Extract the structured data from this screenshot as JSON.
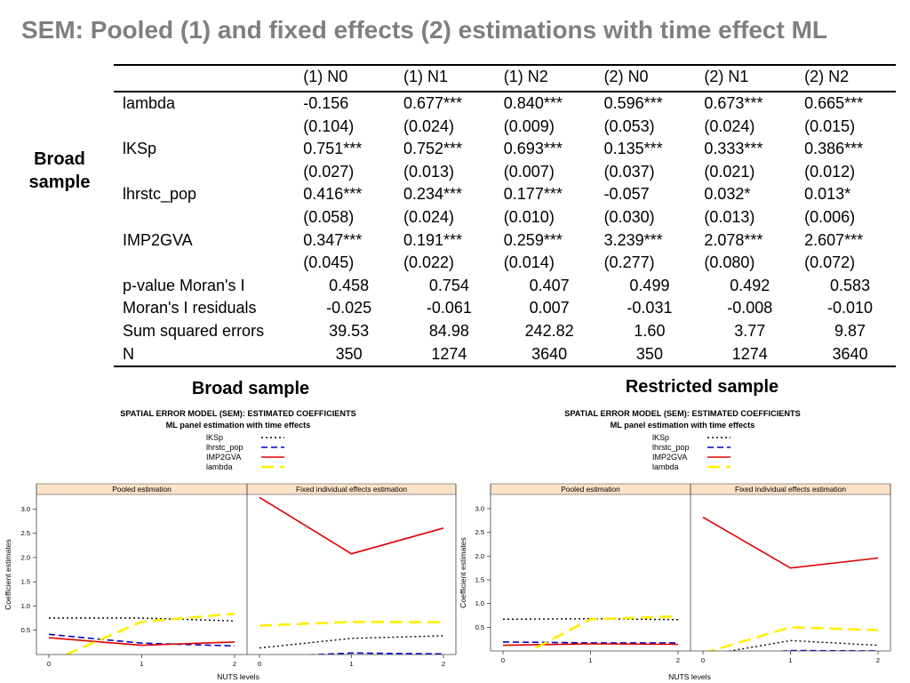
{
  "slide": {
    "title": "SEM: Pooled (1) and fixed effects (2) estimations with time effect ML",
    "side_label": "Broad sample"
  },
  "table": {
    "columns": [
      "(1) N0",
      "(1) N1",
      "(1) N2",
      "(2) N0",
      "(2) N1",
      "(2) N2"
    ],
    "coef_rows": [
      {
        "label": "lambda",
        "values": [
          "-0.156",
          "0.677***",
          "0.840***",
          "0.596***",
          "0.673***",
          "0.665***"
        ],
        "se": [
          "(0.104)",
          "(0.024)",
          "(0.009)",
          "(0.053)",
          "(0.024)",
          "(0.015)"
        ]
      },
      {
        "label": "lKSp",
        "values": [
          "0.751***",
          "0.752***",
          "0.693***",
          "0.135***",
          "0.333***",
          "0.386***"
        ],
        "se": [
          "(0.027)",
          "(0.013)",
          "(0.007)",
          "(0.037)",
          "(0.021)",
          "(0.012)"
        ]
      },
      {
        "label": "lhrstc_pop",
        "values": [
          "0.416***",
          "0.234***",
          "0.177***",
          "-0.057",
          "0.032*",
          "0.013*"
        ],
        "se": [
          "(0.058)",
          "(0.024)",
          "(0.010)",
          "(0.030)",
          "(0.013)",
          "(0.006)"
        ]
      },
      {
        "label": "IMP2GVA",
        "values": [
          "0.347***",
          "0.191***",
          "0.259***",
          "3.239***",
          "2.078***",
          "2.607***"
        ],
        "se": [
          "(0.045)",
          "(0.022)",
          "(0.014)",
          "(0.277)",
          "(0.080)",
          "(0.072)"
        ]
      }
    ],
    "stat_rows": [
      {
        "label": "p-value Moran's I",
        "values": [
          "0.458",
          "0.754",
          "0.407",
          "0.499",
          "0.492",
          "0.583"
        ]
      },
      {
        "label": "Moran's I residuals",
        "values": [
          "-0.025",
          "-0.061",
          "0.007",
          "-0.031",
          "-0.008",
          "-0.010"
        ]
      },
      {
        "label": "Sum squared errors",
        "values": [
          "39.53",
          "84.98",
          "242.82",
          "1.60",
          "3.77",
          "9.87"
        ]
      },
      {
        "label": "N",
        "values": [
          "350",
          "1274",
          "3640",
          "350",
          "1274",
          "3640"
        ]
      }
    ]
  },
  "chart_data": [
    {
      "type": "line",
      "caption": "Broad sample",
      "title": "SPATIAL ERROR MODEL (SEM): ESTIMATED COEFFICIENTS",
      "subtitle": "ML panel estimation with time effects",
      "xlabel": "NUTS levels",
      "ylabel": "Coefficient estimates",
      "x": [
        0,
        1,
        2
      ],
      "x_ticks": [
        "0",
        "1",
        "2"
      ],
      "y_ticks": [
        "0.5",
        "1.0",
        "1.5",
        "2.0",
        "2.5",
        "3.0"
      ],
      "ylim": [
        0.0,
        3.3
      ],
      "legend": [
        "lKSp",
        "lhrstc_pop",
        "IMP2GVA",
        "lambda"
      ],
      "colors": {
        "lKSp": "#000000",
        "lhrstc_pop": "#0000cc",
        "IMP2GVA": "#e00000",
        "lambda": "#ffee00",
        "strip": "#fde3c8"
      },
      "panels": [
        {
          "label": "Pooled estimation",
          "series": [
            {
              "name": "lKSp",
              "values": [
                0.751,
                0.752,
                0.693
              ]
            },
            {
              "name": "lhrstc_pop",
              "values": [
                0.416,
                0.234,
                0.177
              ]
            },
            {
              "name": "IMP2GVA",
              "values": [
                0.347,
                0.191,
                0.259
              ]
            },
            {
              "name": "lambda",
              "values": [
                -0.156,
                0.677,
                0.84
              ]
            }
          ]
        },
        {
          "label": "Fixed individual effects estimation",
          "series": [
            {
              "name": "lKSp",
              "values": [
                0.135,
                0.333,
                0.386
              ]
            },
            {
              "name": "lhrstc_pop",
              "values": [
                -0.057,
                0.032,
                0.013
              ]
            },
            {
              "name": "IMP2GVA",
              "values": [
                3.239,
                2.078,
                2.607
              ]
            },
            {
              "name": "lambda",
              "values": [
                0.596,
                0.673,
                0.665
              ]
            }
          ]
        }
      ]
    },
    {
      "type": "line",
      "caption": "Restricted sample",
      "title": "SPATIAL ERROR MODEL (SEM): ESTIMATED COEFFICIENTS",
      "subtitle": "ML panel estimation with time effects",
      "xlabel": "NUTS levels",
      "ylabel": "Coefficient estimates",
      "x": [
        0,
        1,
        2
      ],
      "x_ticks": [
        "0",
        "1",
        "2"
      ],
      "y_ticks": [
        "0.5",
        "1.0",
        "1.5",
        "2.0",
        "2.5",
        "3.0"
      ],
      "ylim": [
        0.0,
        3.3
      ],
      "legend": [
        "lKSp",
        "lhrstc_pop",
        "IMP2GVA",
        "lambda"
      ],
      "colors": {
        "lKSp": "#000000",
        "lhrstc_pop": "#0000cc",
        "IMP2GVA": "#e00000",
        "lambda": "#ffee00",
        "strip": "#fde3c8"
      },
      "panels": [
        {
          "label": "Pooled estimation",
          "series": [
            {
              "name": "lKSp",
              "values": [
                0.67,
                0.68,
                0.66
              ]
            },
            {
              "name": "lhrstc_pop",
              "values": [
                0.19,
                0.17,
                0.17
              ]
            },
            {
              "name": "IMP2GVA",
              "values": [
                0.12,
                0.15,
                0.14
              ]
            },
            {
              "name": "lambda",
              "values": [
                -0.3,
                0.67,
                0.73
              ]
            }
          ]
        },
        {
          "label": "Fixed individual effects estimation",
          "series": [
            {
              "name": "lKSp",
              "values": [
                -0.1,
                0.22,
                0.12
              ]
            },
            {
              "name": "lhrstc_pop",
              "values": [
                -0.15,
                0.01,
                0.0
              ]
            },
            {
              "name": "IMP2GVA",
              "values": [
                2.82,
                1.75,
                1.96
              ]
            },
            {
              "name": "lambda",
              "values": [
                -0.05,
                0.5,
                0.44
              ]
            }
          ]
        }
      ]
    }
  ]
}
